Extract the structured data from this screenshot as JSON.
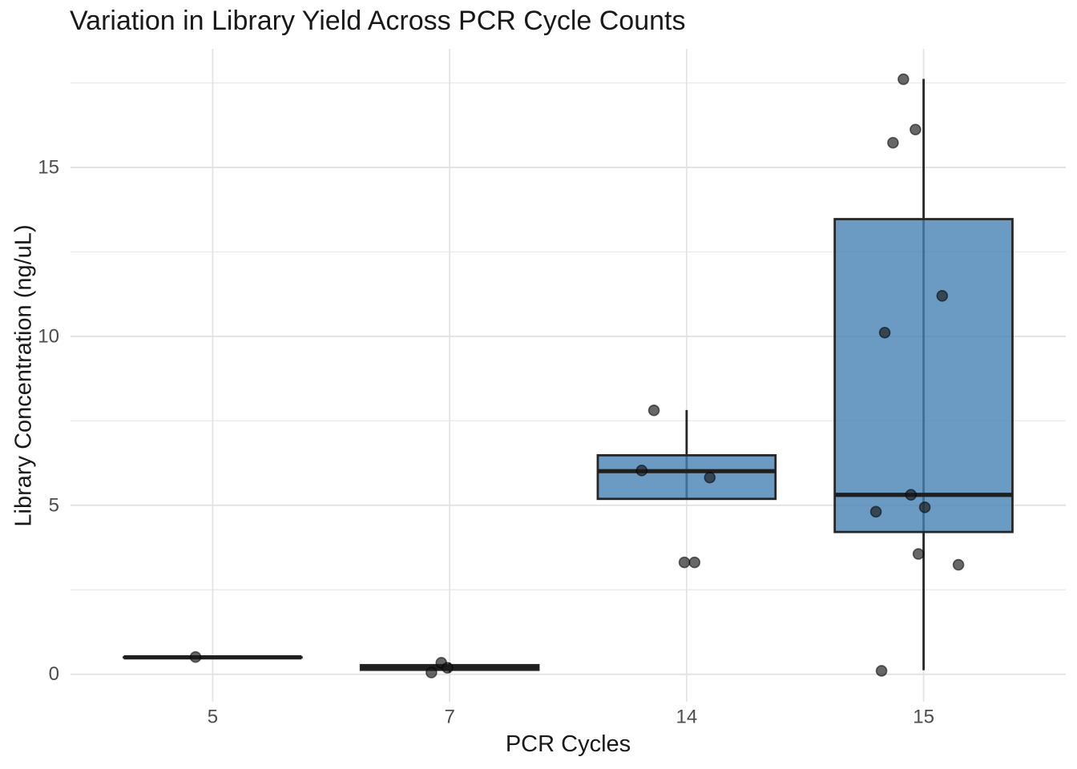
{
  "title": "Variation in Library Yield Across PCR Cycle Counts",
  "chart_data": {
    "type": "boxplot",
    "subtype": "boxplot_with_jittered_points",
    "title": "Variation in Library Yield Across PCR Cycle Counts",
    "xlabel": "PCR Cycles",
    "ylabel": "Library Concentration (ng/uL)",
    "categories": [
      "5",
      "7",
      "14",
      "15"
    ],
    "y_ticks": [
      0,
      5,
      10,
      15
    ],
    "y_tick_labels": [
      "0",
      "5",
      "10",
      "15"
    ],
    "y_minor_ticks": [
      2.5,
      7.5,
      12.5,
      17.5
    ],
    "ylim": [
      -0.82,
      18.49
    ],
    "grid": {
      "horizontal_major": true,
      "horizontal_minor": true,
      "vertical_major": true,
      "vertical_minor": false
    },
    "legend": "none",
    "colors": {
      "box_fill": "rgba(70,130,180,0.8)",
      "box_stroke": "#262626",
      "median_stroke": "#1f1f1f",
      "whisker_stroke": "#262626",
      "point_fill": "rgba(25,25,25,0.66)",
      "point_stroke": "rgba(0,0,0,0.55)",
      "grid_major": "#e3e3e3",
      "grid_minor": "#ebebeb",
      "tick_label": "#4d4d4d",
      "title_color": "#191919"
    },
    "series": [
      {
        "category": "5",
        "stats": {
          "whisker_low": 0.5,
          "q1": 0.5,
          "median": 0.5,
          "q3": 0.5,
          "whisker_high": 0.5
        },
        "observed_values": [
          0.51
        ],
        "points": [
          {
            "dx": -21.4,
            "y": 0.51
          }
        ]
      },
      {
        "category": "7",
        "stats": {
          "whisker_low": 0.05,
          "q1": 0.13,
          "median": 0.2,
          "q3": 0.27,
          "whisker_high": 0.34
        },
        "observed_values": [
          0.05,
          0.19,
          0.34
        ],
        "points": [
          {
            "dx": -22.8,
            "y": 0.05
          },
          {
            "dx": -10.4,
            "y": 0.34
          },
          {
            "dx": -2.8,
            "y": 0.19
          }
        ]
      },
      {
        "category": "14",
        "stats": {
          "whisker_low": 5.19,
          "q1": 5.19,
          "median": 6.01,
          "q3": 6.48,
          "whisker_high": 7.82
        },
        "observed_values": [
          3.31,
          3.31,
          5.82,
          6.03,
          7.81
        ],
        "points": [
          {
            "dx": -40.8,
            "y": 7.81
          },
          {
            "dx": -56.1,
            "y": 6.03
          },
          {
            "dx": 28.9,
            "y": 5.82
          },
          {
            "dx": -2.8,
            "y": 3.31
          },
          {
            "dx": 9.9,
            "y": 3.31
          }
        ]
      },
      {
        "category": "15",
        "stats": {
          "whisker_low": 0.12,
          "q1": 4.21,
          "median": 5.31,
          "q3": 13.47,
          "whisker_high": 17.62
        },
        "observed_values": [
          0.1,
          3.24,
          3.56,
          4.81,
          4.94,
          5.31,
          10.11,
          11.2,
          15.73,
          16.12,
          17.61
        ],
        "points": [
          {
            "dx": -25.2,
            "y": 17.61
          },
          {
            "dx": -10.2,
            "y": 16.12
          },
          {
            "dx": -38.2,
            "y": 15.73
          },
          {
            "dx": 23.2,
            "y": 11.2
          },
          {
            "dx": -48.5,
            "y": 10.11
          },
          {
            "dx": -15.8,
            "y": 5.31
          },
          {
            "dx": 1.5,
            "y": 4.94
          },
          {
            "dx": -59.5,
            "y": 4.81
          },
          {
            "dx": -6.5,
            "y": 3.56
          },
          {
            "dx": 43.5,
            "y": 3.24
          },
          {
            "dx": -52.5,
            "y": 0.1
          }
        ]
      }
    ]
  }
}
